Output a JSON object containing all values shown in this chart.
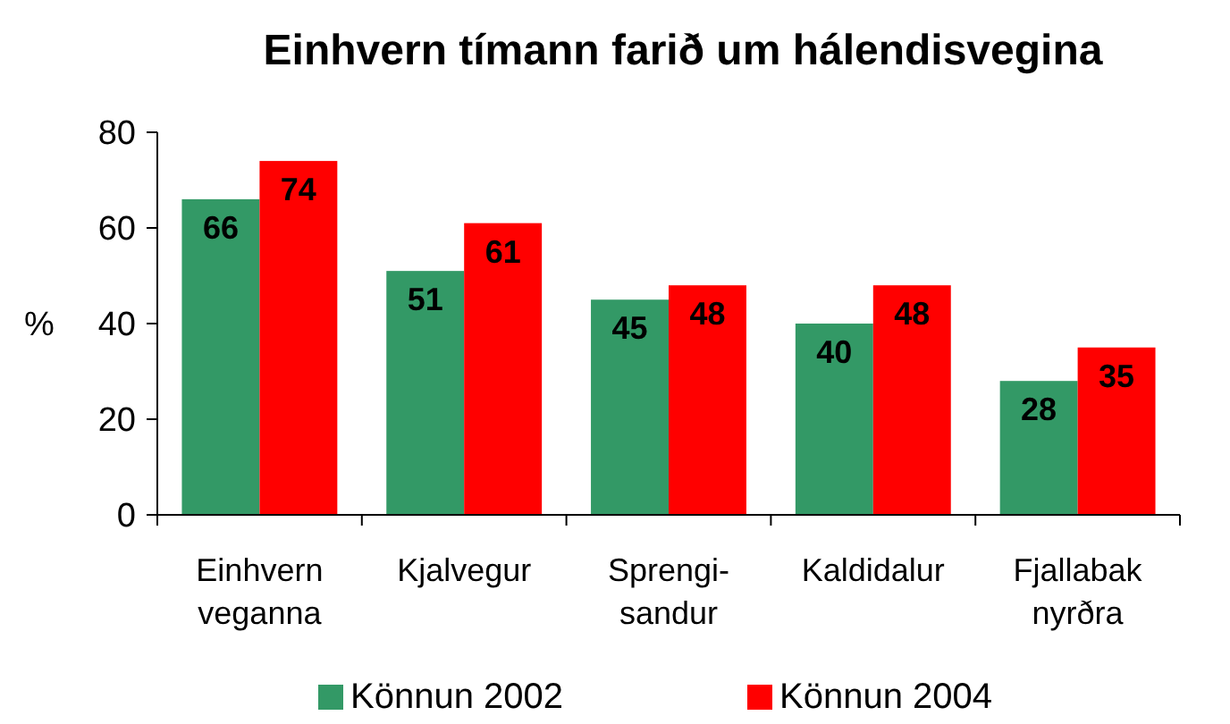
{
  "chart_data": {
    "type": "bar",
    "title": "Einhvern tímann farið um hálendisvegina",
    "ylabel": "%",
    "categories": [
      "Einhvern\nveganna",
      "Kjalvegur",
      "Sprengi-\nsandur",
      "Kaldidalur",
      "Fjallabak\nnyrðra"
    ],
    "series": [
      {
        "name": "Könnun 2002",
        "color": "#339966",
        "values": [
          66,
          51,
          45,
          40,
          28
        ]
      },
      {
        "name": "Könnun 2004",
        "color": "#ff0000",
        "values": [
          74,
          61,
          48,
          48,
          35
        ]
      }
    ],
    "ylim": [
      0,
      80
    ],
    "yticks": [
      0,
      20,
      40,
      60,
      80
    ],
    "grid": false,
    "legend": "bottom",
    "data_labels": true
  }
}
